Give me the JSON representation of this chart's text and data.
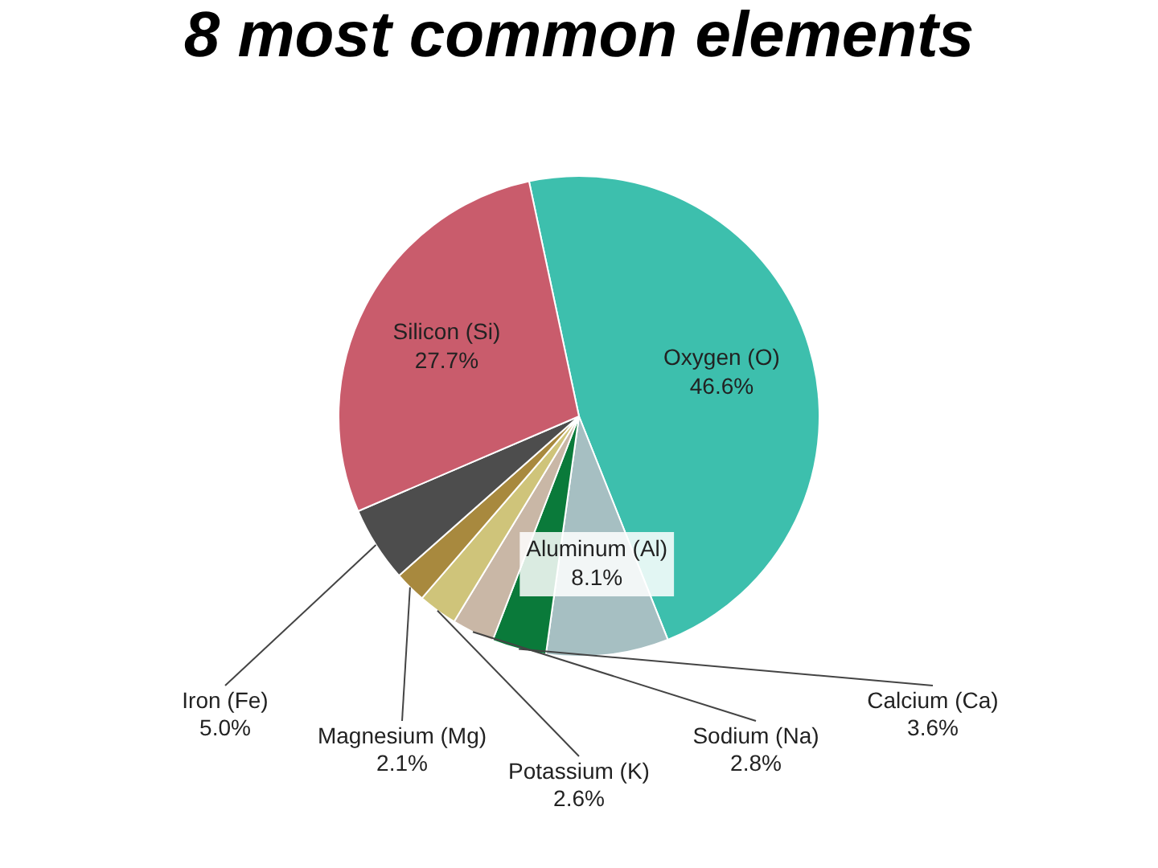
{
  "chart_data": {
    "type": "pie",
    "title": "8 most common elements",
    "categories": [
      "Oxygen (O)",
      "Aluminum (Al)",
      "Calcium (Ca)",
      "Sodium (Na)",
      "Potassium (K)",
      "Magnesium (Mg)",
      "Iron (Fe)",
      "Silicon (Si)"
    ],
    "values": [
      46.6,
      8.1,
      3.6,
      2.8,
      2.6,
      2.1,
      5.0,
      27.7
    ],
    "colors": [
      "#3dbfad",
      "#a6bfc2",
      "#0a7a3a",
      "#c9b7a6",
      "#cfc47a",
      "#a8893e",
      "#4d4d4d",
      "#c95c6c"
    ],
    "value_labels": [
      "46.6%",
      "8.1%",
      "3.6%",
      "2.8%",
      "2.6%",
      "2.1%",
      "5.0%",
      "27.7%"
    ],
    "legend": false
  }
}
